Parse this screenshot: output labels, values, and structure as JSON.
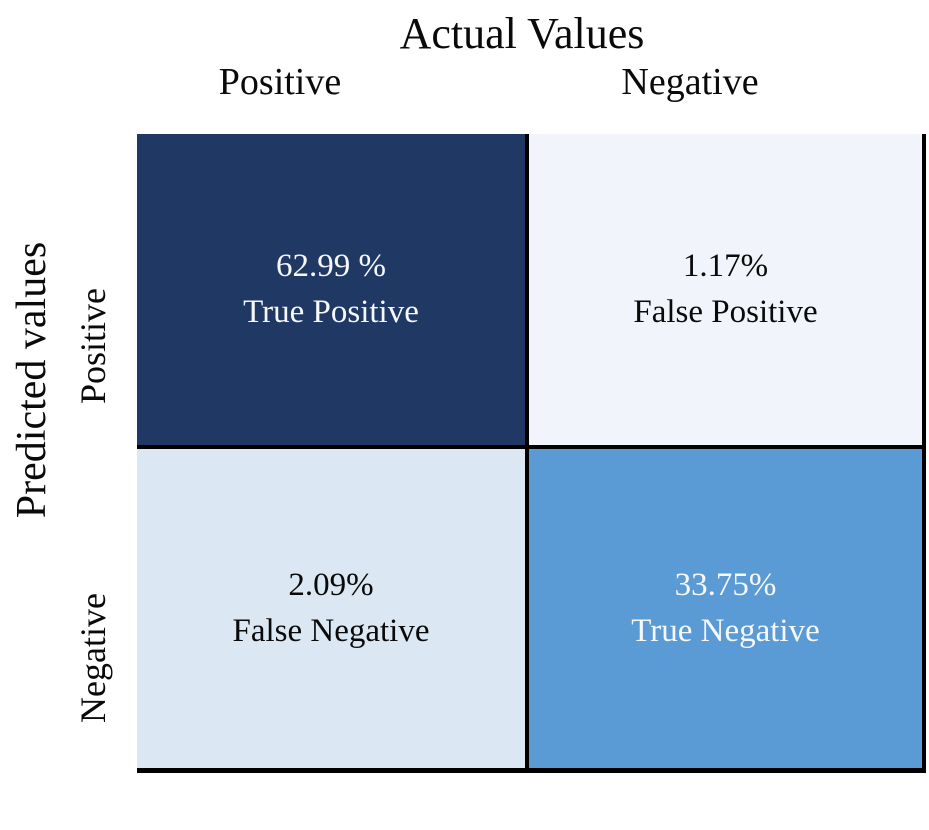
{
  "figure": {
    "title": "Actual Values",
    "y_axis_title": "Predicted values",
    "column_labels": {
      "positive": "Positive",
      "negative": "Negative"
    },
    "row_labels": {
      "positive": "Positive",
      "negative": "Negative"
    }
  },
  "chart_data": {
    "type": "heatmap",
    "title": "Actual Values",
    "xlabel": "Actual Values",
    "ylabel": "Predicted values",
    "x_categories": [
      "Positive",
      "Negative"
    ],
    "y_categories": [
      "Positive",
      "Negative"
    ],
    "matrix_percent": [
      [
        62.99,
        1.17
      ],
      [
        2.09,
        33.75
      ]
    ],
    "legend_position": "none",
    "grid": false,
    "cells": [
      {
        "predicted": "Positive",
        "actual": "Positive",
        "percent_label": "62.99 %",
        "name": "True Positive",
        "value": 62.99,
        "bg_color": "#203864",
        "text_color": "#f6f8fb"
      },
      {
        "predicted": "Positive",
        "actual": "Negative",
        "percent_label": "1.17%",
        "name": "False Positive",
        "value": 1.17,
        "bg_color": "#f1f4fa",
        "text_color": "#0a0a0a"
      },
      {
        "predicted": "Negative",
        "actual": "Positive",
        "percent_label": "2.09%",
        "name": "False Negative",
        "value": 2.09,
        "bg_color": "#dbe8f4",
        "text_color": "#0a0a0a"
      },
      {
        "predicted": "Negative",
        "actual": "Negative",
        "percent_label": "33.75%",
        "name": "True Negative",
        "value": 33.75,
        "bg_color": "#5b9bd5",
        "text_color": "#f6f8fb"
      }
    ]
  }
}
